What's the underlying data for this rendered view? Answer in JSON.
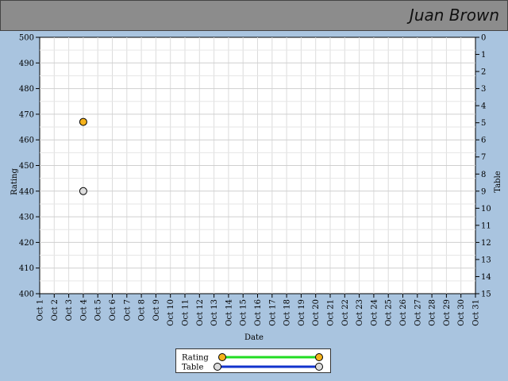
{
  "header": {
    "user_name": "Juan Brown"
  },
  "chart_data": {
    "type": "scatter",
    "x_categories": [
      "Oct 1",
      "Oct 2",
      "Oct 3",
      "Oct 4",
      "Oct 5",
      "Oct 6",
      "Oct 7",
      "Oct 8",
      "Oct 9",
      "Oct 10",
      "Oct 11",
      "Oct 12",
      "Oct 13",
      "Oct 14",
      "Oct 15",
      "Oct 16",
      "Oct 17",
      "Oct 18",
      "Oct 19",
      "Oct 20",
      "Oct 21",
      "Oct 22",
      "Oct 23",
      "Oct 24",
      "Oct 25",
      "Oct 26",
      "Oct 27",
      "Oct 28",
      "Oct 29",
      "Oct 30",
      "Oct 31"
    ],
    "xlabel": "Date",
    "ylabel": "Rating",
    "y2label": "Table",
    "ylim": [
      400,
      500
    ],
    "y_ticks": [
      400,
      410,
      420,
      430,
      440,
      450,
      460,
      470,
      480,
      490,
      500
    ],
    "y2lim": [
      0,
      15
    ],
    "y2_reversed": true,
    "y2_ticks": [
      0,
      1,
      2,
      3,
      4,
      5,
      6,
      7,
      8,
      9,
      10,
      11,
      12,
      13,
      14,
      15
    ],
    "grid": true,
    "legend_position": "bottom",
    "series": [
      {
        "name": "Rating",
        "axis": "left",
        "line_color": "#22dd22",
        "marker_color": "#f5b21b",
        "points": [
          {
            "x": "Oct 4",
            "y": 467
          }
        ]
      },
      {
        "name": "Table",
        "axis": "right",
        "line_color": "#1133cc",
        "marker_color": "#dddddd",
        "points": [
          {
            "x": "Oct 4",
            "y": 9
          }
        ]
      }
    ]
  }
}
